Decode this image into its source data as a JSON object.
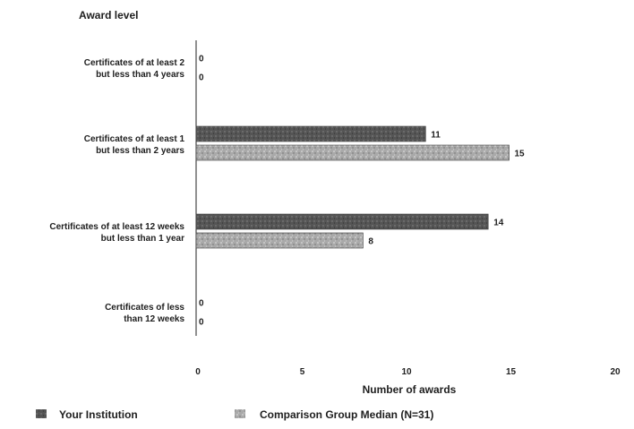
{
  "chart_data": {
    "type": "bar",
    "orientation": "horizontal",
    "ylabel": "Award level",
    "xlabel": "Number of awards",
    "xlim": [
      0,
      20
    ],
    "xticks": [
      0,
      5,
      10,
      15,
      20
    ],
    "grid": false,
    "legend_position": "bottom",
    "categories": [
      [
        "Certificates of at least 2",
        "but less than 4 years"
      ],
      [
        "Certificates of at least 1",
        "but  less than 2 years"
      ],
      [
        "Certificates of at least 12 weeks",
        "but less than 1 year"
      ],
      [
        "Certificates of less",
        "than 12 weeks"
      ]
    ],
    "series": [
      {
        "name": "Your Institution",
        "values": [
          0,
          11,
          14,
          0
        ],
        "color": "#5a5a5a"
      },
      {
        "name": "Comparison Group Median (N=31)",
        "values": [
          0,
          15,
          8,
          0
        ],
        "color": "#a6a6a6"
      }
    ]
  }
}
